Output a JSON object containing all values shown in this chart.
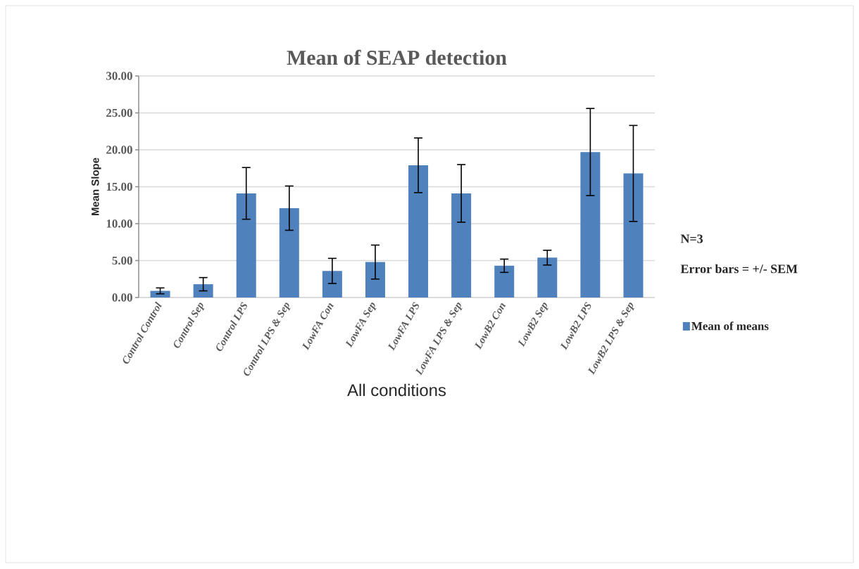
{
  "chart_data": {
    "type": "bar",
    "title": "Mean of SEAP detection",
    "xlabel": "All conditions",
    "ylabel": "Mean Slope",
    "categories": [
      "Control Control",
      "Control Sep",
      "Control LPS",
      "Control LPS & Sep",
      "LowFA Con",
      "LowFA Sep",
      "LowFA LPS",
      "LowFA LPS & Sep",
      "LowB2 Con",
      "LowB2 Sep",
      "LowB2 LPS",
      "LowB2 LPS & Sep"
    ],
    "series": [
      {
        "name": "Mean of means",
        "color": "#4f81bd",
        "values": [
          0.9,
          1.8,
          14.1,
          12.1,
          3.6,
          4.8,
          17.9,
          14.1,
          4.3,
          5.4,
          19.7,
          16.8
        ],
        "errors": [
          0.4,
          0.9,
          3.5,
          3.0,
          1.7,
          2.3,
          3.7,
          3.9,
          0.9,
          1.0,
          5.9,
          6.5
        ]
      }
    ],
    "ylim": [
      0,
      30
    ],
    "yticks": [
      {
        "value": 0,
        "label": "0.00"
      },
      {
        "value": 5,
        "label": "5.00"
      },
      {
        "value": 10,
        "label": "10.00"
      },
      {
        "value": 15,
        "label": "15.00"
      },
      {
        "value": 20,
        "label": "20.00"
      },
      {
        "value": 25,
        "label": "25.00"
      },
      {
        "value": 30,
        "label": "30.00"
      }
    ],
    "grid": "y",
    "legend": "right",
    "annotations": [
      "N=3",
      "Error bars = +/- SEM"
    ]
  }
}
